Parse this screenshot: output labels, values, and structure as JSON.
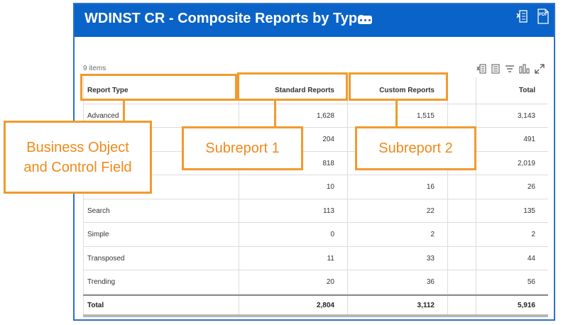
{
  "window": {
    "title": "WDINST CR - Composite Reports by Type",
    "pdf_label": "PDF",
    "header_color": "#0a63c8"
  },
  "toolbar": {
    "items_count": "9 items",
    "icons": [
      "excel-export-icon",
      "view-columns-icon",
      "filter-icon",
      "chart-icon",
      "expand-icon"
    ]
  },
  "table": {
    "headers": {
      "report_type": "Report Type",
      "standard": "Standard Reports",
      "custom": "Custom Reports",
      "total": "Total"
    },
    "rows": [
      {
        "report_type": "Advanced",
        "standard": "1,628",
        "custom": "1,515",
        "total": "3,143"
      },
      {
        "report_type": "",
        "standard": "204",
        "custom": "",
        "total": "491"
      },
      {
        "report_type": "",
        "standard": "818",
        "custom": "",
        "total": "2,019"
      },
      {
        "report_type": "",
        "standard": "10",
        "custom": "16",
        "total": "26"
      },
      {
        "report_type": "Search",
        "standard": "113",
        "custom": "22",
        "total": "135"
      },
      {
        "report_type": "Simple",
        "standard": "0",
        "custom": "2",
        "total": "2"
      },
      {
        "report_type": "Transposed",
        "standard": "11",
        "custom": "33",
        "total": "44"
      },
      {
        "report_type": "Trending",
        "standard": "20",
        "custom": "36",
        "total": "56"
      }
    ],
    "totals": {
      "label": "Total",
      "standard": "2,804",
      "custom": "3,112",
      "total": "5,916"
    }
  },
  "annotations": {
    "business_object": "Business Object\nand Control Field",
    "subreport_1": "Subreport 1",
    "subreport_2": "Subreport 2",
    "color": "#f29a2e"
  }
}
